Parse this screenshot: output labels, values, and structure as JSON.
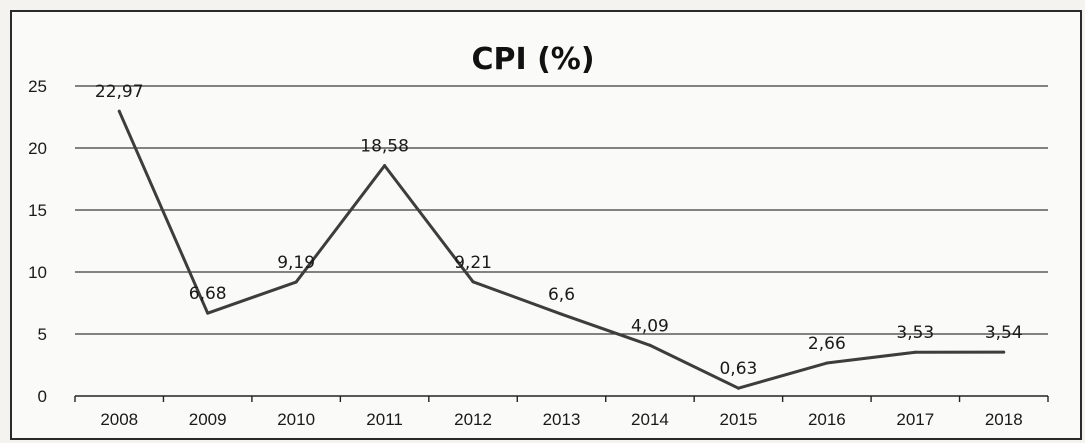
{
  "chart_data": {
    "type": "line",
    "title": "CPI (%)",
    "xlabel": "",
    "ylabel": "",
    "categories": [
      "2008",
      "2009",
      "2010",
      "2011",
      "2012",
      "2013",
      "2014",
      "2015",
      "2016",
      "2017",
      "2018"
    ],
    "series": [
      {
        "values": [
          22.97,
          6.68,
          9.19,
          18.58,
          9.21,
          6.6,
          4.09,
          0.63,
          2.66,
          3.53,
          3.54
        ],
        "labels": [
          "22,97",
          "6,68",
          "9,19",
          "18,58",
          "9,21",
          "6,6",
          "4,09",
          "0,63",
          "2,66",
          "3,53",
          "3,54"
        ]
      }
    ],
    "ylim": [
      0,
      25
    ],
    "yticks": [
      "0",
      "5",
      "10",
      "15",
      "20",
      "25"
    ],
    "grid": true,
    "legend": "none",
    "colors": {
      "line": "#3d3d3d",
      "grid": "#3a3a3a"
    }
  }
}
